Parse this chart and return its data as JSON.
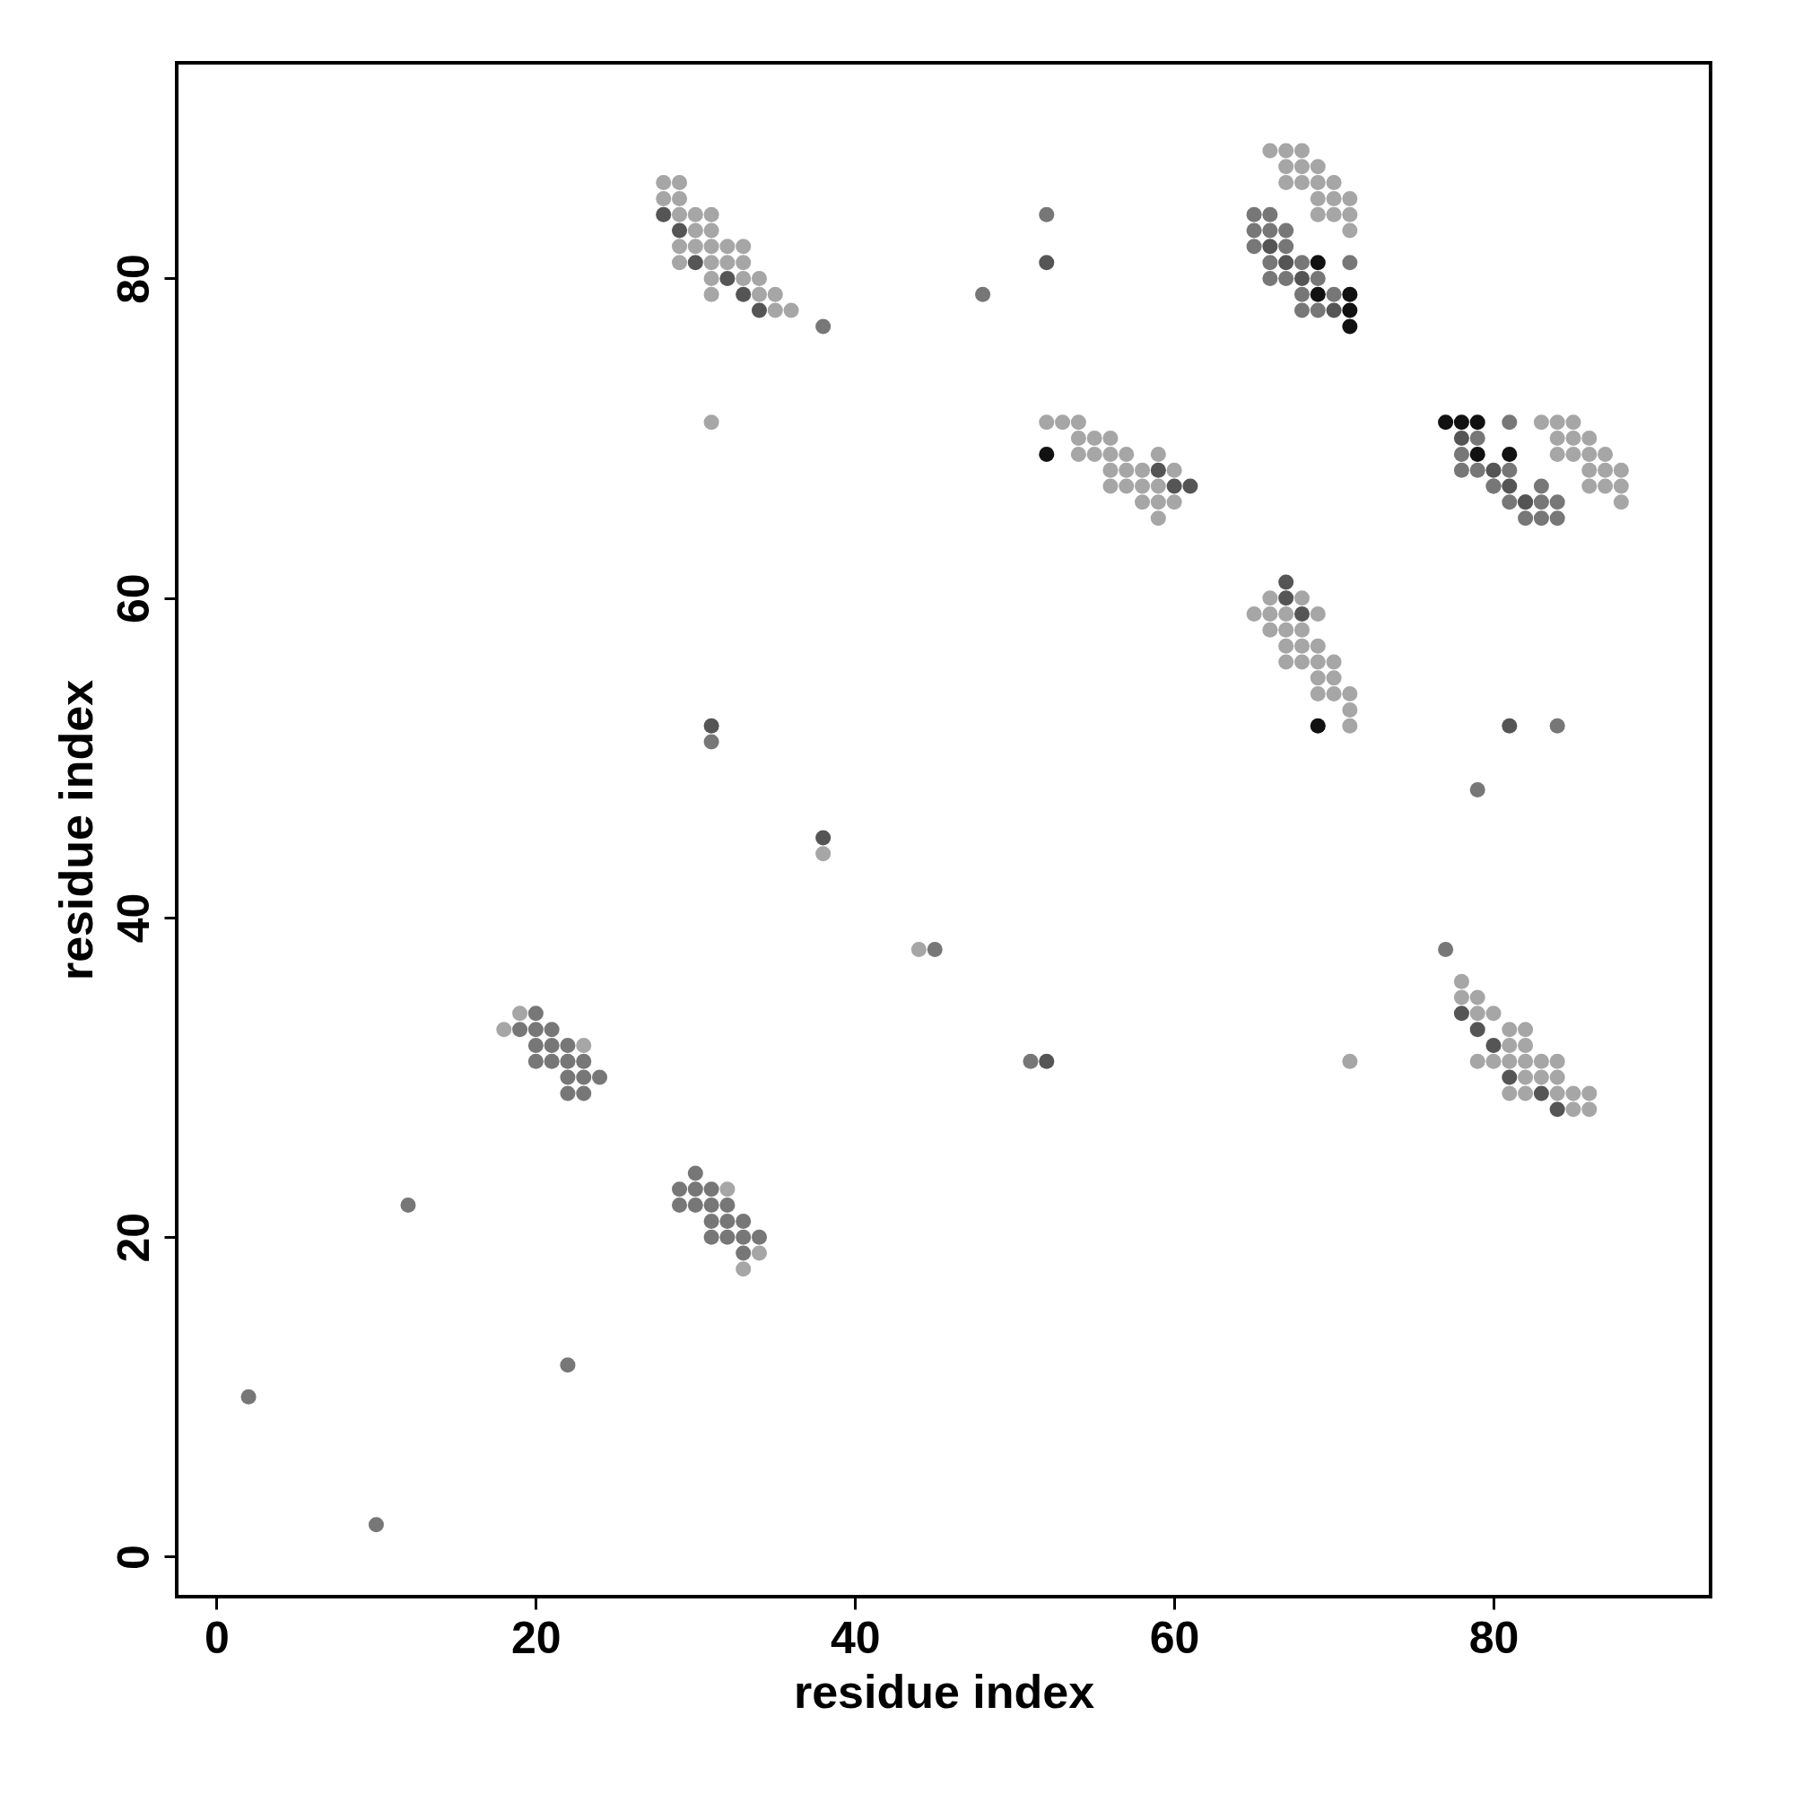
{
  "chart_data": {
    "type": "scatter",
    "xlabel": "residue index",
    "ylabel": "residue index",
    "xlim": [
      -2.5,
      93.6
    ],
    "ylim": [
      -2.5,
      93.5
    ],
    "xticks": [
      0,
      20,
      40,
      60,
      80
    ],
    "yticks": [
      0,
      20,
      40,
      60,
      80
    ],
    "grid": false,
    "legend": false,
    "marker": "circle",
    "series": [
      {
        "color": "#a6a6a6",
        "x": [
          28,
          29,
          28,
          29,
          29,
          30,
          31,
          30,
          31,
          29,
          30,
          31,
          32,
          33,
          29,
          31,
          32,
          33,
          31,
          33,
          34,
          31,
          34,
          35,
          35,
          36,
          31,
          52,
          53,
          54,
          54,
          55,
          56,
          54,
          55,
          56,
          57,
          59,
          56,
          57,
          58,
          60,
          56,
          57,
          58,
          59,
          58,
          59,
          60,
          59,
          66,
          67,
          68,
          67,
          68,
          69,
          67,
          68,
          69,
          70,
          69,
          70,
          71,
          69,
          70,
          71,
          71,
          83,
          84,
          85,
          84,
          85,
          86,
          84,
          85,
          86,
          87,
          86,
          87,
          88,
          86,
          87,
          88,
          88,
          66,
          68,
          65,
          66,
          67,
          69,
          66,
          67,
          68,
          67,
          68,
          69,
          67,
          68,
          69,
          70,
          69,
          70,
          69,
          70,
          71,
          71,
          71,
          78,
          78,
          79,
          79,
          80,
          81,
          82,
          81,
          82,
          79,
          80,
          81,
          82,
          83,
          84,
          82,
          83,
          84,
          81,
          82,
          84,
          85,
          86,
          85,
          86,
          71,
          19,
          18,
          23,
          32,
          34,
          33,
          38,
          44
        ],
        "values": [
          86,
          86,
          85,
          85,
          84,
          84,
          84,
          83,
          83,
          82,
          82,
          82,
          82,
          82,
          81,
          81,
          81,
          81,
          80,
          80,
          80,
          79,
          79,
          79,
          78,
          78,
          71,
          71,
          71,
          71,
          70,
          70,
          70,
          69,
          69,
          69,
          69,
          69,
          68,
          68,
          68,
          68,
          67,
          67,
          67,
          67,
          66,
          66,
          66,
          65,
          88,
          88,
          88,
          87,
          87,
          87,
          86,
          86,
          86,
          86,
          85,
          85,
          85,
          84,
          84,
          84,
          83,
          71,
          71,
          71,
          70,
          70,
          70,
          69,
          69,
          69,
          69,
          68,
          68,
          68,
          67,
          67,
          67,
          66,
          60,
          60,
          59,
          59,
          59,
          59,
          58,
          58,
          58,
          57,
          57,
          57,
          56,
          56,
          56,
          56,
          55,
          55,
          54,
          54,
          54,
          53,
          52,
          36,
          35,
          35,
          34,
          34,
          33,
          33,
          32,
          32,
          31,
          31,
          31,
          31,
          31,
          31,
          30,
          30,
          30,
          29,
          29,
          29,
          29,
          29,
          28,
          28,
          31,
          34,
          33,
          32,
          23,
          19,
          18,
          44,
          38
        ]
      },
      {
        "color": "#777777",
        "x": [
          38,
          52,
          48,
          65,
          66,
          65,
          66,
          67,
          65,
          67,
          66,
          68,
          71,
          66,
          67,
          69,
          68,
          70,
          68,
          69,
          79,
          81,
          78,
          78,
          79,
          80,
          81,
          80,
          81,
          83,
          82,
          83,
          84,
          82,
          83,
          84,
          84,
          79,
          77,
          31,
          45,
          51,
          20,
          19,
          20,
          21,
          20,
          21,
          22,
          20,
          21,
          22,
          23,
          22,
          23,
          24,
          22,
          23,
          30,
          29,
          30,
          31,
          29,
          30,
          31,
          32,
          31,
          32,
          33,
          31,
          32,
          33,
          34,
          33,
          2,
          10,
          12,
          22
        ],
        "values": [
          77,
          84,
          79,
          84,
          84,
          83,
          83,
          83,
          82,
          82,
          81,
          81,
          81,
          80,
          80,
          80,
          79,
          79,
          78,
          78,
          70,
          71,
          69,
          68,
          68,
          67,
          68,
          67,
          66,
          67,
          66,
          66,
          66,
          65,
          65,
          65,
          52,
          48,
          38,
          51,
          38,
          31,
          34,
          33,
          33,
          33,
          32,
          32,
          32,
          31,
          31,
          31,
          31,
          30,
          30,
          30,
          29,
          29,
          24,
          23,
          23,
          23,
          22,
          22,
          22,
          22,
          21,
          21,
          21,
          20,
          20,
          20,
          20,
          19,
          10,
          2,
          22,
          12
        ]
      },
      {
        "color": "#555555",
        "x": [
          28,
          29,
          30,
          32,
          33,
          34,
          52,
          59,
          60,
          61,
          66,
          67,
          68,
          70,
          78,
          80,
          81,
          82,
          67,
          67,
          68,
          81,
          78,
          79,
          80,
          81,
          83,
          84,
          31,
          38,
          52
        ],
        "values": [
          84,
          83,
          81,
          80,
          79,
          78,
          81,
          68,
          67,
          67,
          82,
          81,
          80,
          78,
          70,
          68,
          67,
          66,
          61,
          60,
          59,
          52,
          34,
          33,
          32,
          30,
          29,
          28,
          52,
          45,
          31
        ]
      },
      {
        "color": "#111111",
        "x": [
          52,
          69,
          69,
          71,
          71,
          71,
          77,
          78,
          79,
          79,
          81,
          69
        ],
        "values": [
          69,
          81,
          79,
          79,
          78,
          77,
          71,
          71,
          71,
          69,
          69,
          52
        ]
      }
    ]
  }
}
